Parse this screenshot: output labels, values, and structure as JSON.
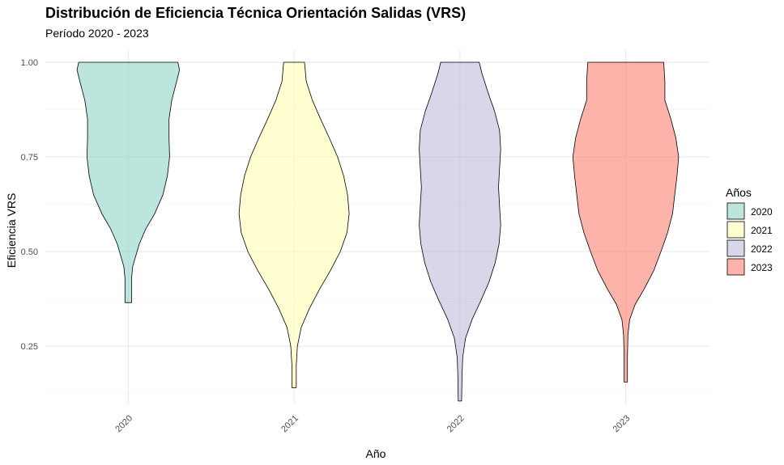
{
  "chart_data": {
    "type": "violin",
    "title": "Distribución de Eficiencia Técnica Orientación Salidas (VRS)",
    "subtitle": "Período 2020 - 2023",
    "xlabel": "Año",
    "ylabel": "Eficiencia VRS",
    "ylim": [
      0.1,
      1.02
    ],
    "yticks": [
      0.25,
      0.5,
      0.75,
      1.0
    ],
    "ytick_labels": [
      "0.25",
      "0.50",
      "0.75",
      "1.00"
    ],
    "grid": true,
    "legend": {
      "title": "Años",
      "position": "right"
    },
    "categories": [
      "2020",
      "2021",
      "2022",
      "2023"
    ],
    "series": [
      {
        "name": "2020",
        "color": "#8DD3C7",
        "min": 0.365,
        "max": 1.0,
        "density": [
          [
            0.365,
            0.06
          ],
          [
            0.4,
            0.06
          ],
          [
            0.43,
            0.06
          ],
          [
            0.46,
            0.08
          ],
          [
            0.48,
            0.12
          ],
          [
            0.52,
            0.2
          ],
          [
            0.56,
            0.32
          ],
          [
            0.6,
            0.48
          ],
          [
            0.65,
            0.63
          ],
          [
            0.7,
            0.71
          ],
          [
            0.75,
            0.75
          ],
          [
            0.8,
            0.74
          ],
          [
            0.85,
            0.74
          ],
          [
            0.9,
            0.79
          ],
          [
            0.95,
            0.88
          ],
          [
            0.98,
            0.93
          ],
          [
            1.0,
            0.9
          ]
        ]
      },
      {
        "name": "2021",
        "color": "#FFFFB3",
        "min": 0.14,
        "max": 1.0,
        "density": [
          [
            0.14,
            0.04
          ],
          [
            0.2,
            0.04
          ],
          [
            0.25,
            0.06
          ],
          [
            0.3,
            0.13
          ],
          [
            0.35,
            0.28
          ],
          [
            0.4,
            0.46
          ],
          [
            0.45,
            0.66
          ],
          [
            0.5,
            0.84
          ],
          [
            0.55,
            0.96
          ],
          [
            0.6,
            1.0
          ],
          [
            0.65,
            0.97
          ],
          [
            0.7,
            0.9
          ],
          [
            0.75,
            0.79
          ],
          [
            0.8,
            0.64
          ],
          [
            0.85,
            0.48
          ],
          [
            0.9,
            0.33
          ],
          [
            0.95,
            0.22
          ],
          [
            1.0,
            0.19
          ]
        ]
      },
      {
        "name": "2022",
        "color": "#BEBADA",
        "min": 0.105,
        "max": 1.0,
        "density": [
          [
            0.105,
            0.03
          ],
          [
            0.18,
            0.04
          ],
          [
            0.22,
            0.05
          ],
          [
            0.27,
            0.1
          ],
          [
            0.32,
            0.22
          ],
          [
            0.37,
            0.38
          ],
          [
            0.42,
            0.53
          ],
          [
            0.47,
            0.64
          ],
          [
            0.52,
            0.71
          ],
          [
            0.57,
            0.74
          ],
          [
            0.62,
            0.72
          ],
          [
            0.67,
            0.7
          ],
          [
            0.72,
            0.72
          ],
          [
            0.77,
            0.74
          ],
          [
            0.82,
            0.72
          ],
          [
            0.87,
            0.63
          ],
          [
            0.92,
            0.51
          ],
          [
            0.97,
            0.4
          ],
          [
            1.0,
            0.35
          ]
        ]
      },
      {
        "name": "2023",
        "color": "#FB8072",
        "min": 0.155,
        "max": 1.0,
        "density": [
          [
            0.155,
            0.03
          ],
          [
            0.22,
            0.03
          ],
          [
            0.28,
            0.04
          ],
          [
            0.32,
            0.07
          ],
          [
            0.36,
            0.17
          ],
          [
            0.4,
            0.33
          ],
          [
            0.45,
            0.51
          ],
          [
            0.5,
            0.64
          ],
          [
            0.55,
            0.76
          ],
          [
            0.6,
            0.85
          ],
          [
            0.65,
            0.89
          ],
          [
            0.7,
            0.93
          ],
          [
            0.75,
            0.96
          ],
          [
            0.8,
            0.91
          ],
          [
            0.85,
            0.82
          ],
          [
            0.9,
            0.71
          ],
          [
            0.95,
            0.71
          ],
          [
            1.0,
            0.69
          ]
        ]
      }
    ]
  }
}
